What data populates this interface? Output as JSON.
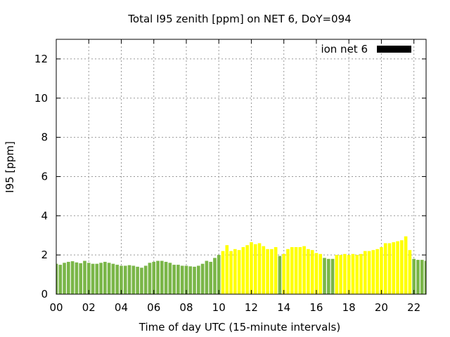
{
  "chart_data": {
    "type": "bar",
    "title": "Total I95 zenith [ppm] on NET 6, DoY=094",
    "xlabel": "Time of day UTC (15-minute intervals)",
    "ylabel": "I95 [ppm]",
    "xlim": [
      0,
      22.75
    ],
    "ylim": [
      0,
      13
    ],
    "x_ticks": [
      "00",
      "02",
      "04",
      "06",
      "08",
      "10",
      "12",
      "14",
      "16",
      "18",
      "20",
      "22"
    ],
    "y_ticks": [
      "0",
      "2",
      "4",
      "6",
      "8",
      "10",
      "12"
    ],
    "grid": true,
    "legend": {
      "position": "top-right",
      "entries": [
        {
          "label": "ion net 6",
          "color": "#000000"
        }
      ]
    },
    "interval_hours": 0.25,
    "series": [
      {
        "values": [
          1.55,
          1.5,
          1.6,
          1.65,
          1.68,
          1.62,
          1.58,
          1.7,
          1.6,
          1.55,
          1.55,
          1.6,
          1.65,
          1.6,
          1.55,
          1.5,
          1.45,
          1.45,
          1.48,
          1.45,
          1.4,
          1.35,
          1.45,
          1.6,
          1.65,
          1.7,
          1.7,
          1.65,
          1.6,
          1.5,
          1.5,
          1.45,
          1.45,
          1.42,
          1.4,
          1.45,
          1.55,
          1.7,
          1.65,
          1.85,
          2.0,
          2.2,
          2.5,
          2.2,
          2.3,
          2.25,
          2.4,
          2.5,
          2.65,
          2.55,
          2.6,
          2.45,
          2.3,
          2.3,
          2.4,
          1.95,
          2.05,
          2.3,
          2.4,
          2.4,
          2.4,
          2.45,
          2.3,
          2.25,
          2.1,
          2.05,
          1.85,
          1.8,
          1.8,
          2.0,
          2.0,
          2.05,
          2.0,
          2.05,
          2.0,
          2.05,
          2.2,
          2.2,
          2.25,
          2.3,
          2.4,
          2.6,
          2.6,
          2.65,
          2.7,
          2.75,
          2.95,
          2.25,
          1.8,
          1.75,
          1.75,
          1.7,
          1.75
        ],
        "colors_by_index": {
          "default": "#7ab648",
          "yellow": [
            41,
            42,
            43,
            44,
            45,
            46,
            47,
            48,
            49,
            50,
            51,
            52,
            53,
            54,
            56,
            57,
            58,
            59,
            60,
            61,
            62,
            63,
            64,
            65,
            69,
            70,
            71,
            72,
            73,
            74,
            75,
            76,
            77,
            78,
            79,
            80,
            81,
            82,
            83,
            84,
            85,
            86,
            87
          ]
        }
      }
    ],
    "colors": {
      "green": "#7ab648",
      "yellow": "#ffff00"
    }
  }
}
